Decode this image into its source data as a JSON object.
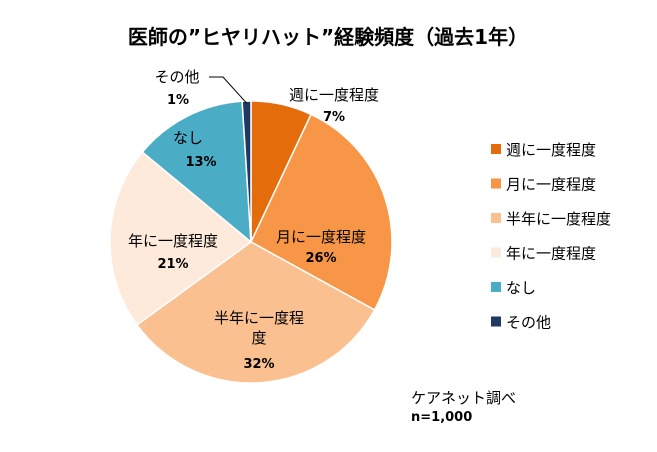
{
  "chart_data": {
    "type": "pie",
    "title": "医師の”ヒヤリハット”経験頻度（過去1年）",
    "slices": [
      {
        "label": "週に一度程度",
        "pct_label": "7%",
        "value": 7,
        "color": "#e46c0a"
      },
      {
        "label": "月に一度程度",
        "pct_label": "26%",
        "value": 26,
        "color": "#f79646"
      },
      {
        "label": "半年に一度程度",
        "pct_label": "32%",
        "value": 32,
        "color": "#fac090"
      },
      {
        "label": "年に一度程度",
        "pct_label": "21%",
        "value": 21,
        "color": "#fdeada"
      },
      {
        "label": "なし",
        "pct_label": "13%",
        "value": 13,
        "color": "#4bacc6"
      },
      {
        "label": "その他",
        "pct_label": "1%",
        "value": 1,
        "color": "#1f3864"
      }
    ],
    "legend": [
      "週に一度程度",
      "月に一度程度",
      "半年に一度程度",
      "年に一度程度",
      "なし",
      "その他"
    ],
    "legend_position": "right",
    "source": "ケアネット調べ",
    "sample_size": "n=1,000"
  }
}
